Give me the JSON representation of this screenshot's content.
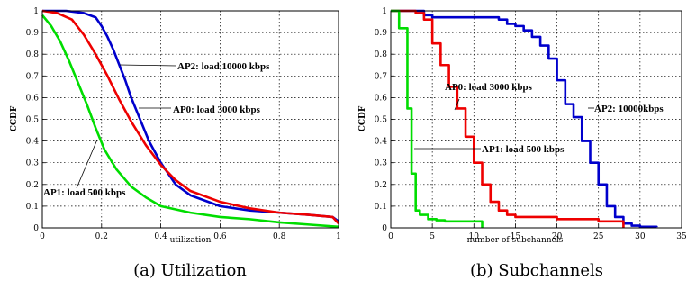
{
  "chart_data": [
    {
      "type": "line",
      "caption": "(a) Utilization",
      "xlabel": "utilization",
      "ylabel": "CCDF",
      "xlim": [
        0,
        1
      ],
      "ylim": [
        0,
        1
      ],
      "xticks": [
        0,
        0.2,
        0.4,
        0.6,
        0.8,
        1
      ],
      "yticks": [
        0,
        0.1,
        0.2,
        0.3,
        0.4,
        0.5,
        0.6,
        0.7,
        0.8,
        0.9,
        1
      ],
      "grid": true,
      "series": [
        {
          "name": "AP2: load 10000 kbps",
          "color": "#0000cc",
          "x": [
            0,
            0.08,
            0.14,
            0.18,
            0.2,
            0.22,
            0.24,
            0.26,
            0.28,
            0.3,
            0.33,
            0.36,
            0.4,
            0.45,
            0.5,
            0.6,
            0.7,
            0.8,
            0.9,
            0.98,
            1
          ],
          "y": [
            1,
            1,
            0.99,
            0.97,
            0.93,
            0.88,
            0.82,
            0.75,
            0.68,
            0.6,
            0.5,
            0.4,
            0.3,
            0.2,
            0.15,
            0.1,
            0.08,
            0.07,
            0.06,
            0.05,
            0.03
          ]
        },
        {
          "name": "AP0: load 3000 kbps",
          "color": "#ee0000",
          "x": [
            0,
            0.05,
            0.1,
            0.14,
            0.18,
            0.22,
            0.26,
            0.3,
            0.35,
            0.4,
            0.45,
            0.5,
            0.6,
            0.7,
            0.8,
            0.9,
            0.98,
            1
          ],
          "y": [
            1,
            0.99,
            0.96,
            0.89,
            0.8,
            0.7,
            0.59,
            0.49,
            0.38,
            0.29,
            0.22,
            0.17,
            0.12,
            0.09,
            0.07,
            0.06,
            0.05,
            0.02
          ]
        },
        {
          "name": "AP1: load 500 kbps",
          "color": "#00dd00",
          "x": [
            0,
            0.03,
            0.06,
            0.09,
            0.12,
            0.15,
            0.18,
            0.21,
            0.25,
            0.3,
            0.35,
            0.4,
            0.5,
            0.6,
            0.7,
            0.8,
            0.9,
            1
          ],
          "y": [
            0.98,
            0.93,
            0.86,
            0.77,
            0.67,
            0.57,
            0.46,
            0.36,
            0.27,
            0.19,
            0.14,
            0.1,
            0.07,
            0.05,
            0.04,
            0.025,
            0.015,
            0.005
          ]
        }
      ],
      "annotations": [
        {
          "text": "AP2: load 10000 kbps"
        },
        {
          "text": "AP0: load 3000 kbps"
        },
        {
          "text": "AP1: load 500 kbps"
        }
      ]
    },
    {
      "type": "line",
      "caption": "(b) Subchannels",
      "xlabel": "number of subchannels",
      "ylabel": "CCDF",
      "xlim": [
        0,
        35
      ],
      "ylim": [
        0,
        1
      ],
      "xticks": [
        0,
        5,
        10,
        15,
        20,
        25,
        30,
        35
      ],
      "yticks": [
        0,
        0.1,
        0.2,
        0.3,
        0.4,
        0.5,
        0.6,
        0.7,
        0.8,
        0.9,
        1
      ],
      "grid": true,
      "series": [
        {
          "name": "AP2: 10000kbps",
          "color": "#0000cc",
          "step": true,
          "x": [
            0,
            3,
            4,
            5,
            13,
            14,
            15,
            16,
            17,
            18,
            19,
            20,
            21,
            22,
            23,
            24,
            25,
            26,
            27,
            28,
            29,
            30,
            32
          ],
          "y": [
            1,
            1,
            0.98,
            0.97,
            0.96,
            0.94,
            0.93,
            0.91,
            0.88,
            0.84,
            0.78,
            0.68,
            0.57,
            0.51,
            0.4,
            0.3,
            0.2,
            0.1,
            0.05,
            0.02,
            0.01,
            0.005,
            0.003
          ]
        },
        {
          "name": "AP0: load 3000 kbps",
          "color": "#ee0000",
          "step": true,
          "x": [
            0,
            3,
            4,
            5,
            6,
            7,
            8,
            9,
            10,
            11,
            12,
            13,
            14,
            15,
            20,
            25,
            28
          ],
          "y": [
            1,
            0.99,
            0.96,
            0.85,
            0.75,
            0.65,
            0.55,
            0.42,
            0.3,
            0.2,
            0.12,
            0.08,
            0.06,
            0.05,
            0.04,
            0.03,
            0.0
          ]
        },
        {
          "name": "AP1: load 500 kbps",
          "color": "#00dd00",
          "step": true,
          "x": [
            0,
            1,
            2,
            2.5,
            3,
            3.5,
            4.5,
            5.5,
            6.5,
            10.5,
            11
          ],
          "y": [
            1,
            0.92,
            0.55,
            0.25,
            0.08,
            0.06,
            0.04,
            0.035,
            0.03,
            0.03,
            0.0
          ]
        }
      ],
      "annotations": [
        {
          "text": "AP2: 10000kbps"
        },
        {
          "text": "AP0: load 3000 kbps"
        },
        {
          "text": "AP1: load 500 kbps"
        }
      ]
    }
  ]
}
